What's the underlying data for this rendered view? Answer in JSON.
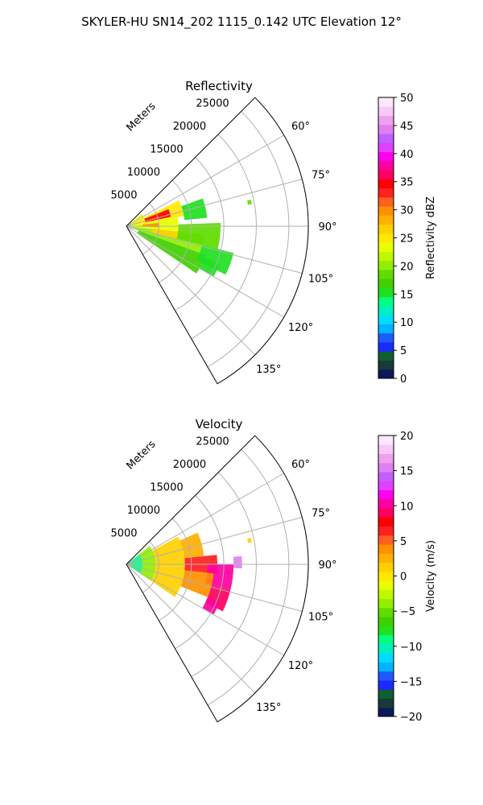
{
  "figure": {
    "suptitle": "SKYLER-HU  SN14_202  1115_0.142 UTC Elevation 12°"
  },
  "chart_data": [
    {
      "type": "heatmap",
      "projection": "polar-sector",
      "title": "Reflectivity",
      "range_label": "Meters",
      "range_ticks": [
        5000,
        10000,
        15000,
        20000,
        25000
      ],
      "range_tick_labels": [
        "5000",
        "10000",
        "15000",
        "20000",
        "25000"
      ],
      "range_max": 28000,
      "azimuth_span": [
        45,
        150
      ],
      "azimuth_ticks": [
        60,
        75,
        90,
        105,
        120,
        135
      ],
      "azimuth_tick_labels": [
        "60°",
        "75°",
        "90°",
        "105°",
        "120°",
        "135°"
      ],
      "grid": true,
      "colorbar": {
        "label": "Reflectivity dBZ",
        "vmin": 0,
        "vmax": 50,
        "ticks": [
          0,
          5,
          10,
          15,
          20,
          25,
          30,
          35,
          40,
          45,
          50
        ],
        "tick_labels": [
          "0",
          "5",
          "10",
          "15",
          "20",
          "25",
          "30",
          "35",
          "40",
          "45",
          "50"
        ],
        "colors": [
          "#0a1a5a",
          "#1a3a3a",
          "#0e6030",
          "#1a2aff",
          "#1e5aff",
          "#00b4ff",
          "#00dcff",
          "#00f0c0",
          "#00ff80",
          "#20e020",
          "#40d000",
          "#60dc00",
          "#90f000",
          "#c0f800",
          "#e8ff00",
          "#ffe800",
          "#ffd000",
          "#ffb000",
          "#ff9000",
          "#ff6020",
          "#ff2020",
          "#ff0000",
          "#ff0060",
          "#ff00a0",
          "#ff00f0",
          "#e040ff",
          "#c060ff",
          "#e080f0",
          "#f0a0f0",
          "#f8c8f8",
          "#fce8fc"
        ]
      },
      "echo_regions": [
        {
          "az_start": 52,
          "az_end": 64,
          "r_start": 0,
          "r_end": 3000,
          "value": 23
        },
        {
          "az_start": 64,
          "az_end": 80,
          "r_start": 0,
          "r_end": 9000,
          "value": 25
        },
        {
          "az_start": 80,
          "az_end": 96,
          "r_start": 0,
          "r_end": 8000,
          "value": 23
        },
        {
          "az_start": 96,
          "az_end": 110,
          "r_start": 0,
          "r_end": 12000,
          "value": 20
        },
        {
          "az_start": 110,
          "az_end": 124,
          "r_start": 2000,
          "r_end": 13000,
          "value": 17
        },
        {
          "az_start": 70,
          "az_end": 84,
          "r_start": 9000,
          "r_end": 12500,
          "value": 15
        },
        {
          "az_start": 88,
          "az_end": 104,
          "r_start": 8000,
          "r_end": 14500,
          "value": 18
        },
        {
          "az_start": 104,
          "az_end": 116,
          "r_start": 12000,
          "r_end": 17000,
          "value": 16
        },
        {
          "az_start": 68,
          "az_end": 78,
          "r_start": 3000,
          "r_end": 7000,
          "value": 34
        },
        {
          "az_start": 84,
          "az_end": 92,
          "r_start": 2500,
          "r_end": 5000,
          "value": 30
        },
        {
          "az_start": 96,
          "az_end": 104,
          "r_start": 4000,
          "r_end": 8000,
          "value": 27
        },
        {
          "az_start": 112,
          "az_end": 120,
          "r_start": 13000,
          "r_end": 15500,
          "value": 15
        },
        {
          "az_start": 78,
          "az_end": 80,
          "r_start": 19000,
          "r_end": 19600,
          "value": 18
        }
      ]
    },
    {
      "type": "heatmap",
      "projection": "polar-sector",
      "title": "Velocity",
      "range_label": "Meters",
      "range_ticks": [
        5000,
        10000,
        15000,
        20000,
        25000
      ],
      "range_tick_labels": [
        "5000",
        "10000",
        "15000",
        "20000",
        "25000"
      ],
      "range_max": 28000,
      "azimuth_span": [
        45,
        150
      ],
      "azimuth_ticks": [
        60,
        75,
        90,
        105,
        120,
        135
      ],
      "azimuth_tick_labels": [
        "60°",
        "75°",
        "90°",
        "105°",
        "120°",
        "135°"
      ],
      "grid": true,
      "colorbar": {
        "label": "Velocity (m/s)",
        "vmin": -20,
        "vmax": 20,
        "ticks": [
          -20,
          -15,
          -10,
          -5,
          0,
          5,
          10,
          15,
          20
        ],
        "tick_labels": [
          "−20",
          "−15",
          "−10",
          "−5",
          "0",
          "5",
          "10",
          "15",
          "20"
        ],
        "colors": [
          "#0a1a5a",
          "#1a3a3a",
          "#0e6030",
          "#1a2aff",
          "#1e5aff",
          "#00b4ff",
          "#00dcff",
          "#00f0c0",
          "#00ff80",
          "#20e020",
          "#40d000",
          "#60dc00",
          "#90f000",
          "#c0f800",
          "#e8ff00",
          "#ffe800",
          "#ffd000",
          "#ffb000",
          "#ff9000",
          "#ff6020",
          "#ff2020",
          "#ff0000",
          "#ff0060",
          "#ff00a0",
          "#ff00f0",
          "#e040ff",
          "#c060ff",
          "#e080f0",
          "#f0a0f0",
          "#f8c8f8",
          "#fce8fc"
        ]
      },
      "echo_regions": [
        {
          "az_start": 52,
          "az_end": 124,
          "r_start": 0,
          "r_end": 2500,
          "value": -9
        },
        {
          "az_start": 52,
          "az_end": 124,
          "r_start": 2500,
          "r_end": 4500,
          "value": -4
        },
        {
          "az_start": 62,
          "az_end": 124,
          "r_start": 4500,
          "r_end": 9000,
          "value": 1
        },
        {
          "az_start": 66,
          "az_end": 84,
          "r_start": 9000,
          "r_end": 12000,
          "value": 2
        },
        {
          "az_start": 84,
          "az_end": 96,
          "r_start": 9000,
          "r_end": 14000,
          "value": 6
        },
        {
          "az_start": 90,
          "az_end": 104,
          "r_start": 12500,
          "r_end": 16500,
          "value": 10
        },
        {
          "az_start": 96,
          "az_end": 112,
          "r_start": 9000,
          "r_end": 13500,
          "value": 4
        },
        {
          "az_start": 104,
          "az_end": 116,
          "r_start": 13500,
          "r_end": 16500,
          "value": 9
        },
        {
          "az_start": 86,
          "az_end": 92,
          "r_start": 16500,
          "r_end": 17800,
          "value": 15
        },
        {
          "az_start": 112,
          "az_end": 120,
          "r_start": 13500,
          "r_end": 15500,
          "value": 10
        },
        {
          "az_start": 78,
          "az_end": 80,
          "r_start": 19000,
          "r_end": 19600,
          "value": 1
        }
      ]
    }
  ]
}
